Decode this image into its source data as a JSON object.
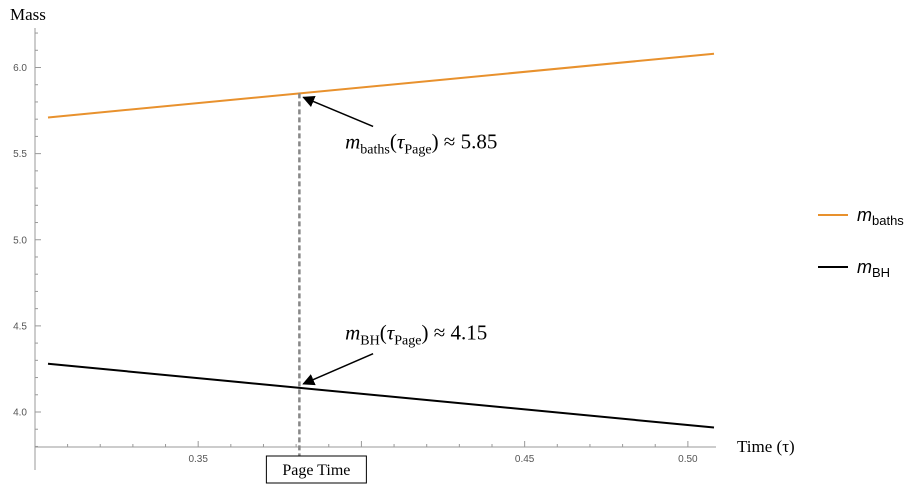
{
  "chart_data": {
    "type": "line",
    "ylabel": "Mass",
    "xlabel": "Time (τ)",
    "xlim": [
      0.3,
      0.51
    ],
    "ylim": [
      3.8,
      6.2
    ],
    "x_ticks": [
      0.35,
      0.4,
      0.45,
      0.5
    ],
    "x_tick_labels": [
      "0.35",
      "",
      "0.45",
      "0.50"
    ],
    "y_ticks": [
      4.0,
      4.5,
      5.0,
      5.5,
      6.0
    ],
    "y_tick_labels": [
      "4.0",
      "4.5",
      "5.0",
      "5.5",
      "6.0"
    ],
    "series": [
      {
        "name": "m_baths",
        "color": "#E8912D",
        "x": [
          0.304,
          0.508
        ],
        "y": [
          5.71,
          6.08
        ]
      },
      {
        "name": "m_BH",
        "color": "#000000",
        "x": [
          0.304,
          0.508
        ],
        "y": [
          4.28,
          3.91
        ]
      }
    ],
    "legend": {
      "placement": "right",
      "entries": [
        {
          "var": "m",
          "sub": "baths",
          "color": "#E8912D"
        },
        {
          "var": "m",
          "sub": "BH",
          "color": "#000000"
        }
      ]
    },
    "page_time": {
      "x": 0.381,
      "label": "Page Time"
    },
    "annotations": [
      {
        "target_x": 0.381,
        "target_y": 5.85,
        "text_x": 0.395,
        "text_y": 5.53,
        "var": "m",
        "sub": "baths",
        "inner_var": "τ",
        "inner_sub": "Page",
        "rel": "≈",
        "value": "5.85"
      },
      {
        "target_x": 0.381,
        "target_y": 4.14,
        "text_x": 0.395,
        "text_y": 4.42,
        "var": "m",
        "sub": "BH",
        "inner_var": "τ",
        "inner_sub": "Page",
        "rel": "≈",
        "value": "4.15"
      }
    ]
  }
}
